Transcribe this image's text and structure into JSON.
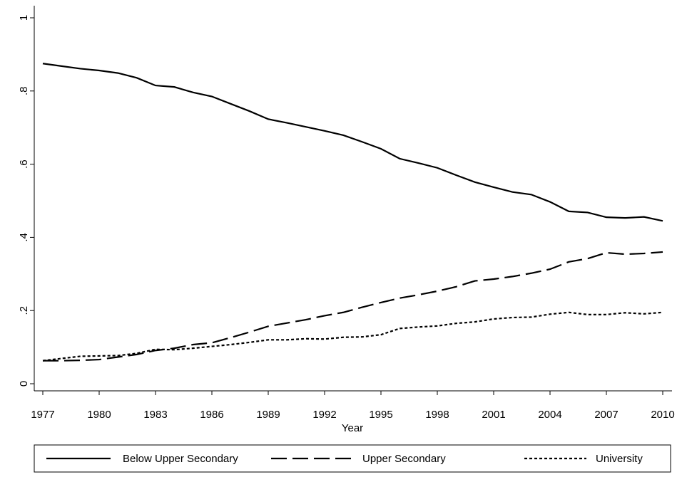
{
  "chart_data": {
    "type": "line",
    "x_label": "Year",
    "x": [
      1977,
      1978,
      1979,
      1980,
      1981,
      1982,
      1983,
      1984,
      1985,
      1986,
      1987,
      1988,
      1989,
      1990,
      1991,
      1992,
      1993,
      1994,
      1995,
      1996,
      1997,
      1998,
      1999,
      2000,
      2001,
      2002,
      2003,
      2004,
      2005,
      2006,
      2007,
      2008,
      2009,
      2010
    ],
    "series": [
      {
        "name": "Below Upper Secondary",
        "color": "#000000",
        "dash": "solid",
        "values": [
          0.875,
          0.868,
          0.861,
          0.856,
          0.849,
          0.836,
          0.815,
          0.811,
          0.796,
          0.785,
          0.765,
          0.745,
          0.723,
          0.713,
          0.702,
          0.691,
          0.679,
          0.661,
          0.642,
          0.615,
          0.603,
          0.59,
          0.57,
          0.551,
          0.537,
          0.524,
          0.517,
          0.497,
          0.471,
          0.468,
          0.455,
          0.453,
          0.456,
          0.445
        ]
      },
      {
        "name": "Upper Secondary",
        "color": "#000000",
        "dash": "dash",
        "values": [
          0.063,
          0.063,
          0.064,
          0.066,
          0.073,
          0.08,
          0.091,
          0.097,
          0.107,
          0.112,
          0.126,
          0.141,
          0.157,
          0.166,
          0.175,
          0.186,
          0.195,
          0.209,
          0.222,
          0.234,
          0.243,
          0.253,
          0.265,
          0.281,
          0.286,
          0.293,
          0.302,
          0.313,
          0.333,
          0.342,
          0.358,
          0.354,
          0.356,
          0.36
        ]
      },
      {
        "name": "University",
        "color": "#000000",
        "dash": "dot",
        "values": [
          0.063,
          0.069,
          0.075,
          0.076,
          0.077,
          0.083,
          0.094,
          0.093,
          0.097,
          0.102,
          0.107,
          0.113,
          0.12,
          0.12,
          0.123,
          0.122,
          0.127,
          0.128,
          0.134,
          0.151,
          0.155,
          0.158,
          0.165,
          0.169,
          0.177,
          0.181,
          0.182,
          0.19,
          0.195,
          0.189,
          0.189,
          0.194,
          0.191,
          0.195
        ]
      }
    ],
    "xlim": [
      1977,
      2010
    ],
    "xticks": [
      1977,
      1980,
      1983,
      1986,
      1989,
      1992,
      1995,
      1998,
      2001,
      2004,
      2007,
      2010
    ],
    "ylim": [
      0,
      1
    ],
    "yticks": [
      0,
      {
        "value": 0.2,
        "label": ".2"
      },
      {
        "value": 0.4,
        "label": ".4"
      },
      {
        "value": 0.6,
        "label": ".6"
      },
      {
        "value": 0.8,
        "label": ".8"
      },
      1
    ],
    "grid": false,
    "legend": "bottom"
  }
}
